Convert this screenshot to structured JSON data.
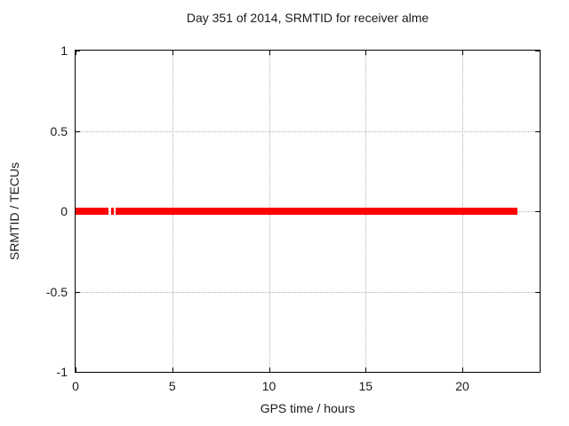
{
  "window": {
    "background": "#ffffff"
  },
  "chart_data": {
    "type": "line",
    "title": "Day 351 of 2014, SRMTID for receiver alme",
    "xlabel": "GPS time / hours",
    "ylabel": "SRMTID / TECUs",
    "xlim": [
      0,
      24
    ],
    "ylim": [
      -1,
      1
    ],
    "xticks": [
      0,
      5,
      10,
      15,
      20
    ],
    "xtick_labels": [
      "0",
      "5",
      "10",
      "15",
      "20"
    ],
    "yticks": [
      1,
      0.5,
      0,
      -0.5,
      -1
    ],
    "ytick_labels": [
      "1",
      "0.5",
      "0",
      "-0.5",
      "-1"
    ],
    "grid": true,
    "grid_style": "dotted",
    "legend": "none",
    "series": [
      {
        "name": "SRMTID",
        "color": "#ff0000",
        "style": "thick constant line at y=0 with short data gap near 1.7-2.1 h",
        "y_value": 0,
        "line_thickness_px": 8,
        "x_segments_hours": [
          [
            0.0,
            1.7
          ],
          [
            1.84,
            1.97
          ],
          [
            2.09,
            22.85
          ]
        ]
      }
    ],
    "colors": {
      "series": "#ff0000",
      "grid": "#b0b0b0",
      "border": "#000000",
      "text": "#1a1a1a"
    }
  }
}
